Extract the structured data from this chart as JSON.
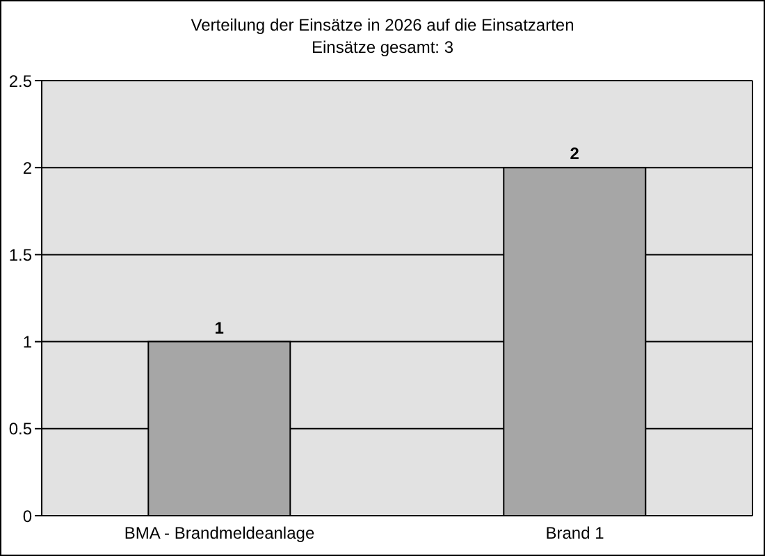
{
  "chart_data": {
    "type": "bar",
    "title": "Verteilung der Einsätze in 2026 auf die Einsatzarten",
    "subtitle": "Einsätze gesamt: 3",
    "categories": [
      "BMA - Brandmeldeanlage",
      "Brand 1"
    ],
    "values": [
      1,
      2
    ],
    "color": "#a6a6a6",
    "ylim": [
      0,
      2.5
    ],
    "yticks": [
      0,
      0.5,
      1,
      1.5,
      2,
      2.5
    ],
    "grid": "y",
    "data_labels": true
  }
}
